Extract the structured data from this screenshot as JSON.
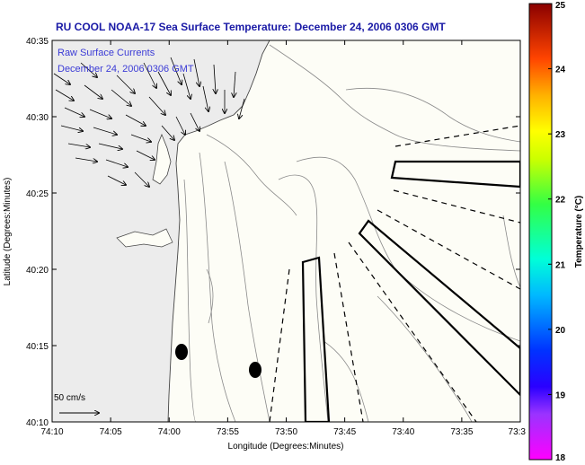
{
  "title": "RU COOL  NOAA-17  Sea Surface Temperature:  December 24, 2006 0306 GMT",
  "legend": {
    "line1": "Raw Surface Currents",
    "line2": "December 24, 2006 0306 GMT"
  },
  "scale_label": "50 cm/s",
  "x_axis": {
    "label": "Longitude (Degrees:Minutes)",
    "ticks": [
      "74:10",
      "74:05",
      "74:00",
      "73:55",
      "73:50",
      "73:45",
      "73:40",
      "73:35",
      "73:3"
    ]
  },
  "y_axis": {
    "label": "Latitude (Degrees:Minutes)",
    "ticks": [
      "40:35",
      "40:30",
      "40:25",
      "40:20",
      "40:15",
      "40:10"
    ]
  },
  "colorbar": {
    "label": "Temperature (°C)",
    "ticks": [
      "25",
      "24",
      "23",
      "22",
      "21",
      "20",
      "19",
      "18"
    ]
  },
  "colors": {
    "title": "#1a1aa6",
    "legend_text": "#3b3bd6",
    "map_background": "#fdfdf6",
    "land": "#e6e6e6"
  }
}
